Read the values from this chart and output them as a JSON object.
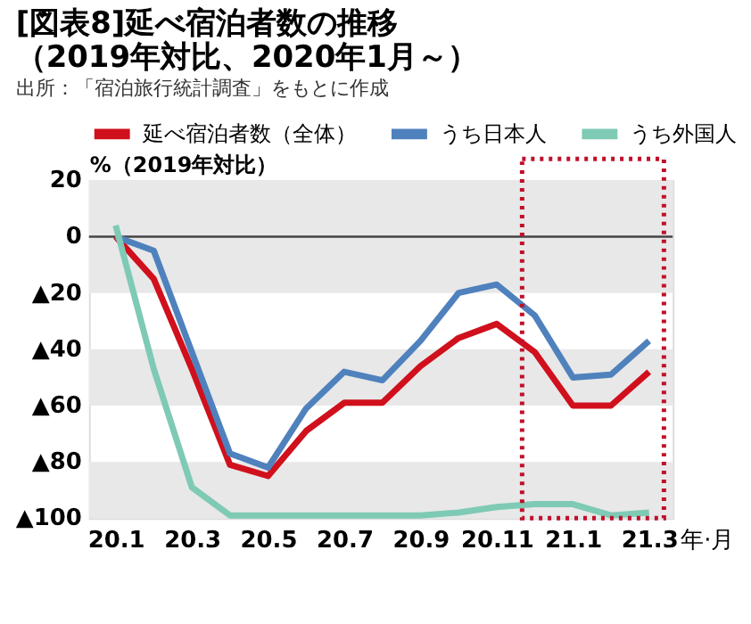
{
  "chart_data": {
    "type": "line",
    "title": "[図表8]延べ宿泊者数の推移",
    "subtitle": "（2019年対比、2020年1月～）",
    "annotations": [
      "出所：「宿泊旅行統計調査」をもとに作成"
    ],
    "xlabel": "年·月",
    "ylabel": "%（2019年対比）",
    "categories": [
      "20.1",
      null,
      "20.3",
      null,
      "20.5",
      null,
      "20.7",
      null,
      "20.9",
      null,
      "20.11",
      null,
      "21.1",
      null,
      "21.3"
    ],
    "series": [
      {
        "name": "延べ宿泊者数（全体）",
        "color": "#d0101c",
        "values": [
          0,
          -15,
          -47,
          -81,
          -85,
          -69,
          -59,
          -59,
          -46,
          -36,
          -31,
          -41,
          -60,
          -60,
          -48
        ]
      },
      {
        "name": "うち日本人",
        "color": "#4f81bd",
        "values": [
          0,
          -5,
          -41,
          -77,
          -82,
          -61,
          -48,
          -51,
          -37,
          -20,
          -17,
          -28,
          -50,
          -49,
          -37
        ]
      },
      {
        "name": "うち外国人",
        "color": "#7fcab5",
        "values": [
          4,
          -47,
          -89,
          -99,
          -99,
          -99,
          -99,
          -99,
          -99,
          -98,
          -96,
          -95,
          -95,
          -99,
          -98
        ]
      }
    ],
    "ylim": [
      -100,
      20
    ],
    "yticks": [
      {
        "value": 20,
        "label": "20"
      },
      {
        "value": 0,
        "label": "0"
      },
      {
        "value": -20,
        "label": "▲20"
      },
      {
        "value": -40,
        "label": "▲40"
      },
      {
        "value": -60,
        "label": "▲60"
      },
      {
        "value": -80,
        "label": "▲80"
      },
      {
        "value": -100,
        "label": "▲100"
      }
    ],
    "ref_lines": [
      {
        "axis": "y",
        "value": 0,
        "color": "#444444"
      }
    ],
    "bands": [
      {
        "axis": "y",
        "from": -20,
        "to": 20,
        "color": "#e8e8e8"
      },
      {
        "axis": "y",
        "from": -60,
        "to": -40,
        "color": "#e8e8e8"
      },
      {
        "axis": "y",
        "from": -100,
        "to": -80,
        "color": "#e8e8e8"
      }
    ],
    "legend": "top",
    "grid": false,
    "line_style": "solid",
    "marker": "none"
  }
}
